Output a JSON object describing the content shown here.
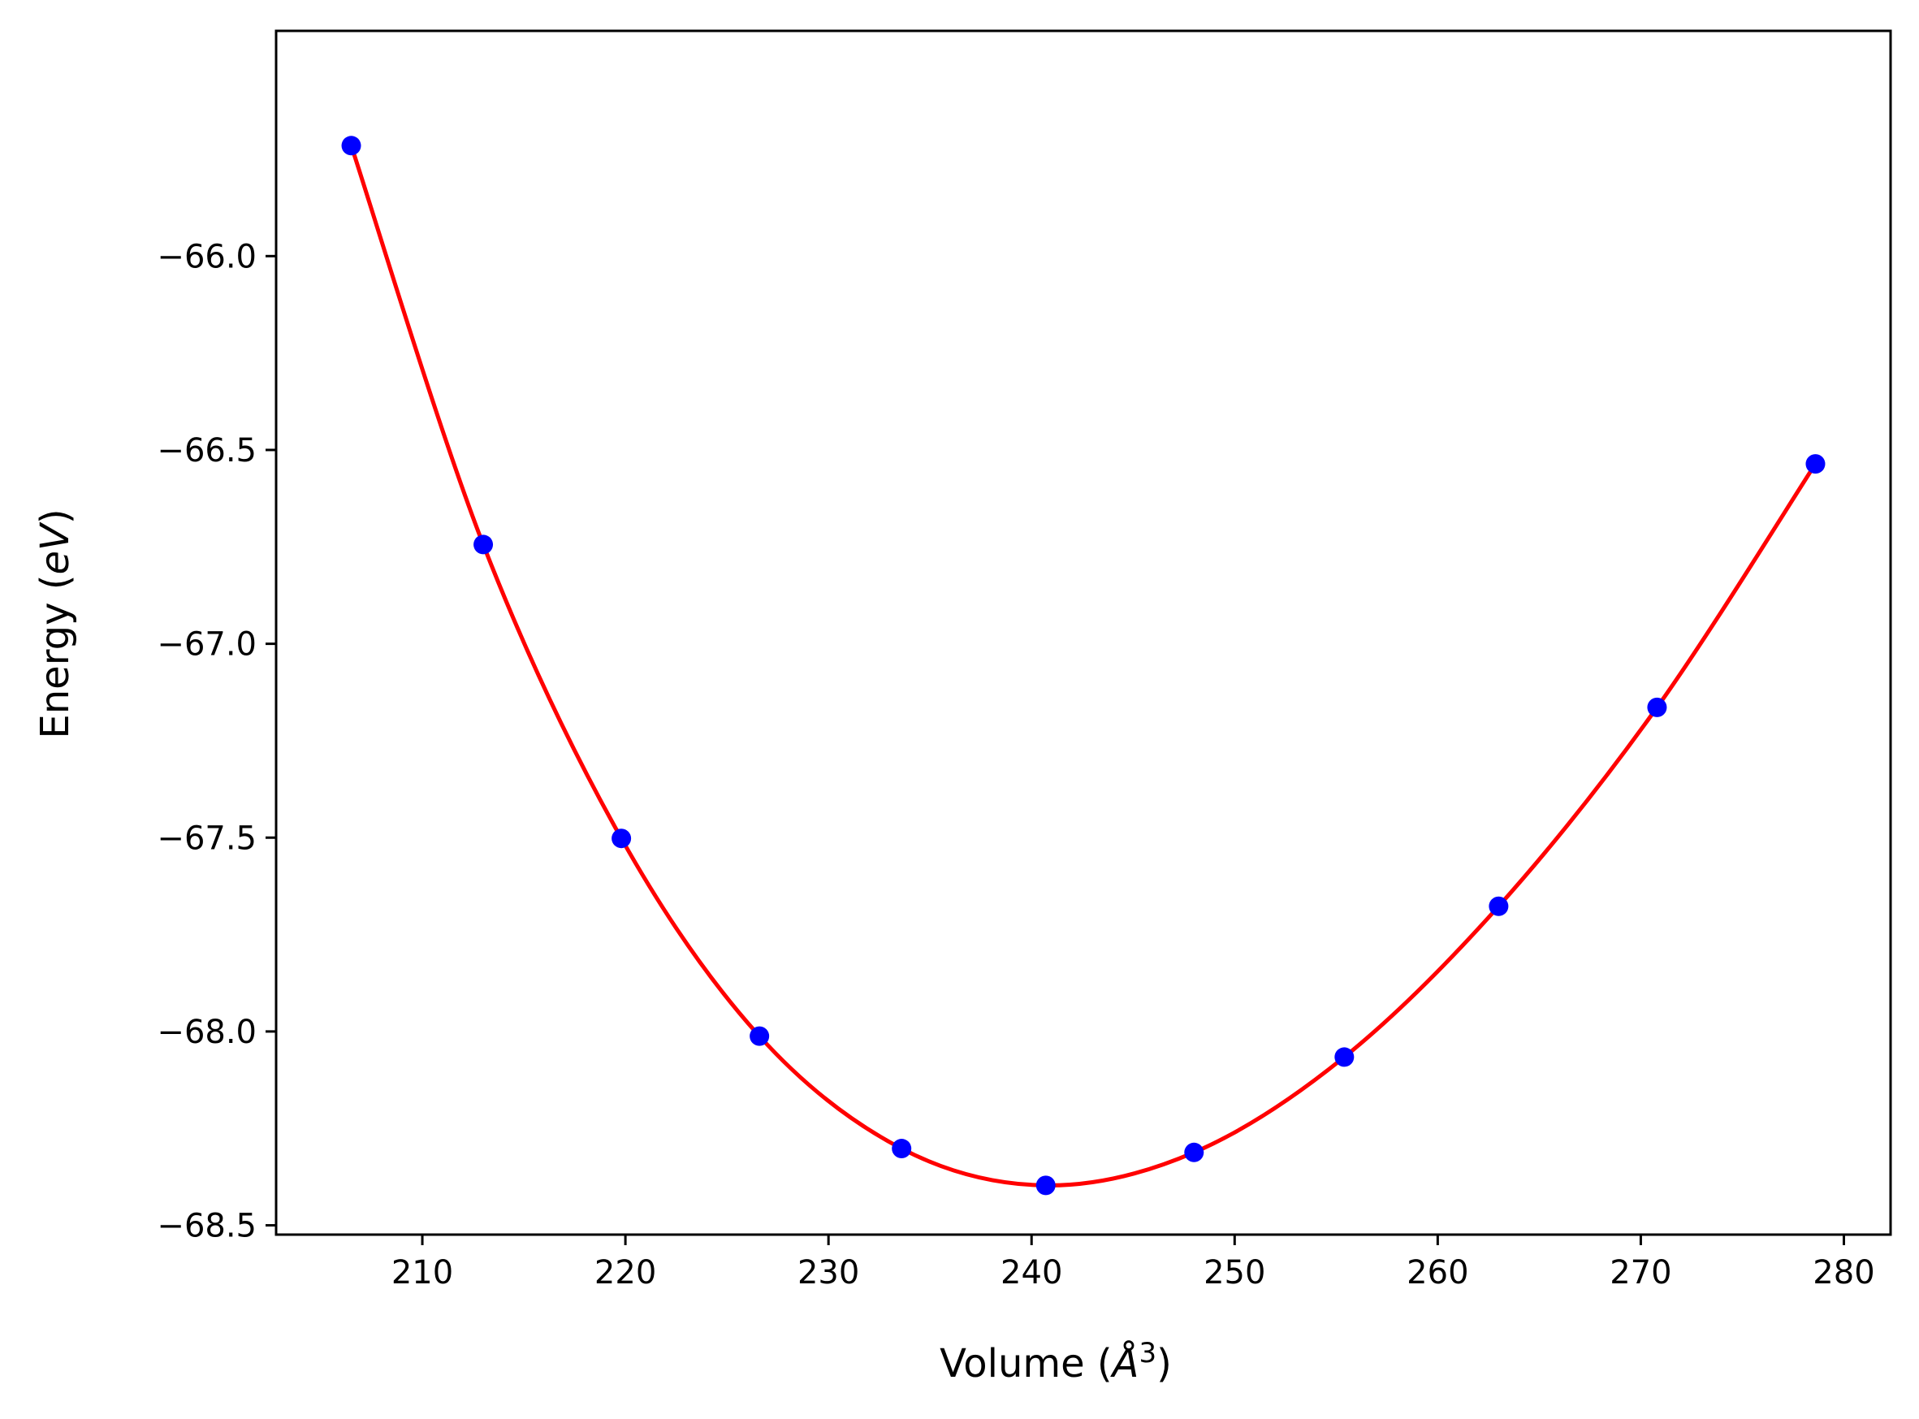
{
  "chart_data": {
    "type": "scatter",
    "title": "",
    "xlabel": {
      "prefix": "Volume (",
      "unit": "Å",
      "power": "3",
      "suffix": ")"
    },
    "ylabel": {
      "prefix": "Energy (",
      "unit": "eV",
      "suffix": ")"
    },
    "xlim": [
      202.8,
      282.3
    ],
    "ylim": [
      -68.524,
      -65.419
    ],
    "x_ticks": [
      210,
      220,
      230,
      240,
      250,
      260,
      270,
      280
    ],
    "x_tick_labels": [
      "210",
      "220",
      "230",
      "240",
      "250",
      "260",
      "270",
      "280"
    ],
    "y_ticks": [
      -66.0,
      -66.5,
      -67.0,
      -67.5,
      -68.0,
      -68.5
    ],
    "y_tick_labels": [
      "−66.0",
      "−66.5",
      "−67.0",
      "−67.5",
      "−68.0",
      "−68.5"
    ],
    "grid": false,
    "series": [
      {
        "name": "data",
        "kind": "points",
        "color": "#0000ff",
        "x": [
          206.5,
          213.0,
          219.8,
          226.6,
          233.6,
          240.7,
          248.0,
          255.4,
          263.0,
          270.8,
          278.6
        ],
        "y": [
          -65.715,
          -66.744,
          -67.502,
          -68.012,
          -68.302,
          -68.397,
          -68.312,
          -68.066,
          -67.677,
          -67.164,
          -66.536
        ]
      },
      {
        "name": "fit",
        "kind": "curve",
        "color": "#ff0000",
        "x": [
          206.5,
          213.0,
          219.8,
          226.6,
          233.6,
          240.7,
          248.0,
          255.4,
          263.0,
          270.8,
          278.6
        ],
        "y": [
          -65.715,
          -66.744,
          -67.502,
          -68.012,
          -68.302,
          -68.397,
          -68.312,
          -68.066,
          -67.677,
          -67.164,
          -66.536
        ]
      }
    ]
  }
}
